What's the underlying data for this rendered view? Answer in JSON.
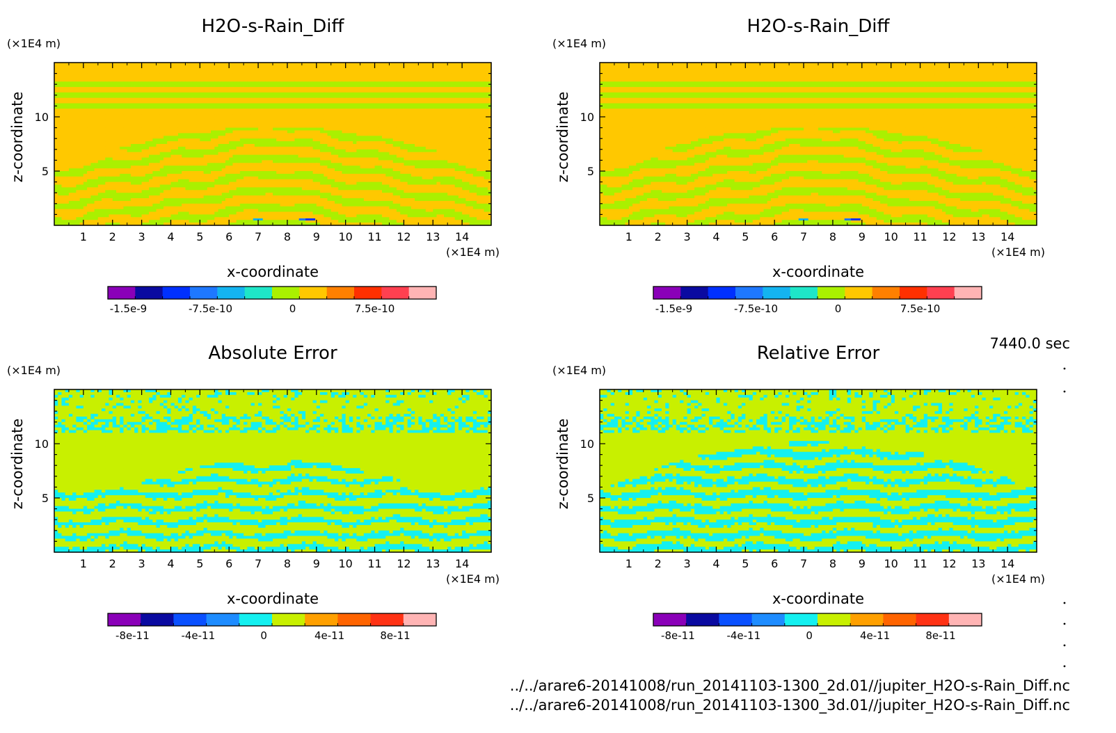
{
  "chart_data": [
    {
      "type": "heatmap",
      "title": "H2O-s-Rain_Diff",
      "xlabel": "x-coordinate",
      "ylabel": "z-coordinate",
      "xunit": "(×1E4 m)",
      "yunit": "(×1E4 m)",
      "xlim": [
        0,
        15
      ],
      "ylim": [
        0,
        15
      ],
      "xticks": [
        "1",
        "2",
        "3",
        "4",
        "5",
        "6",
        "7",
        "8",
        "9",
        "10",
        "11",
        "12",
        "13",
        "14"
      ],
      "yticks": [
        "5",
        "10"
      ],
      "colorbar_labels": [
        "-1.5e-9",
        "-7.5e-10",
        "0",
        "7.5e-10"
      ],
      "colors": [
        "#8a00b8",
        "#0a0aa0",
        "#0030ff",
        "#1e78ff",
        "#14b4f0",
        "#1ee6c8",
        "#aaf000",
        "#ffc800",
        "#ff8000",
        "#ff3000",
        "#ff4050",
        "#ffb4b4"
      ],
      "pattern": "diff"
    },
    {
      "type": "heatmap",
      "title": "H2O-s-Rain_Diff",
      "xlabel": "x-coordinate",
      "ylabel": "z-coordinate",
      "xunit": "(×1E4 m)",
      "yunit": "(×1E4 m)",
      "xlim": [
        0,
        15
      ],
      "ylim": [
        0,
        15
      ],
      "xticks": [
        "1",
        "2",
        "3",
        "4",
        "5",
        "6",
        "7",
        "8",
        "9",
        "10",
        "11",
        "12",
        "13",
        "14"
      ],
      "yticks": [
        "5",
        "10"
      ],
      "colorbar_labels": [
        "-1.5e-9",
        "-7.5e-10",
        "0",
        "7.5e-10"
      ],
      "colors": [
        "#8a00b8",
        "#0a0aa0",
        "#0030ff",
        "#1e78ff",
        "#14b4f0",
        "#1ee6c8",
        "#aaf000",
        "#ffc800",
        "#ff8000",
        "#ff3000",
        "#ff4050",
        "#ffb4b4"
      ],
      "pattern": "diff"
    },
    {
      "type": "heatmap",
      "title": "Absolute Error",
      "xlabel": "x-coordinate",
      "ylabel": "z-coordinate",
      "xunit": "(×1E4 m)",
      "yunit": "(×1E4 m)",
      "xlim": [
        0,
        15
      ],
      "ylim": [
        0,
        15
      ],
      "xticks": [
        "1",
        "2",
        "3",
        "4",
        "5",
        "6",
        "7",
        "8",
        "9",
        "10",
        "11",
        "12",
        "13",
        "14"
      ],
      "yticks": [
        "5",
        "10"
      ],
      "colorbar_labels": [
        "-8e-11",
        "-4e-11",
        "0",
        "4e-11",
        "8e-11"
      ],
      "colors": [
        "#8a00b8",
        "#0a0aa0",
        "#0a50ff",
        "#1e8cff",
        "#14f0f0",
        "#c8f000",
        "#ffa000",
        "#ff6400",
        "#ff3214",
        "#ffb4b4"
      ],
      "pattern": "abs"
    },
    {
      "type": "heatmap",
      "title": "Relative Error",
      "xlabel": "x-coordinate",
      "ylabel": "z-coordinate",
      "xunit": "(×1E4 m)",
      "yunit": "(×1E4 m)",
      "xlim": [
        0,
        15
      ],
      "ylim": [
        0,
        15
      ],
      "xticks": [
        "1",
        "2",
        "3",
        "4",
        "5",
        "6",
        "7",
        "8",
        "9",
        "10",
        "11",
        "12",
        "13",
        "14"
      ],
      "yticks": [
        "5",
        "10"
      ],
      "colorbar_labels": [
        "-8e-11",
        "-4e-11",
        "0",
        "4e-11",
        "8e-11"
      ],
      "colors": [
        "#8a00b8",
        "#0a0aa0",
        "#0a50ff",
        "#1e8cff",
        "#14f0f0",
        "#c8f000",
        "#ffa000",
        "#ff6400",
        "#ff3214",
        "#ffb4b4"
      ],
      "pattern": "rel"
    }
  ],
  "time_label": "7440.0 sec",
  "files": [
    "../../arare6-20141008/run_20141103-1300_2d.01//jupiter_H2O-s-Rain_Diff.nc",
    "../../arare6-20141008/run_20141103-1300_3d.01//jupiter_H2O-s-Rain_Diff.nc"
  ]
}
